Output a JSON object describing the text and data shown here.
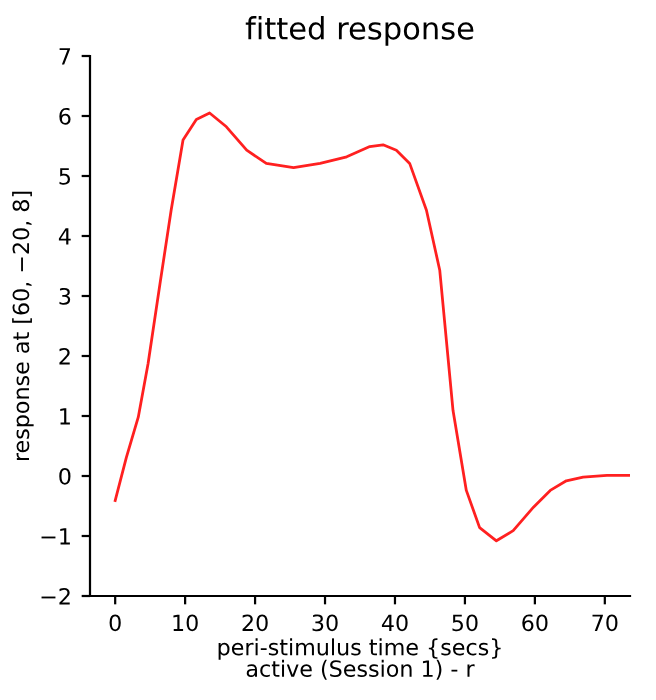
{
  "chart_data": {
    "type": "line",
    "title": "fitted response",
    "xlabel": "peri-stimulus time {secs}\nactive (Session 1) - r",
    "ylabel": "response at [60, −20, 8]",
    "x": [
      0,
      1.6,
      3.3,
      4.7,
      6.4,
      8.0,
      9.7,
      11.6,
      13.5,
      15.9,
      18.8,
      21.6,
      25.5,
      29.3,
      33.1,
      36.4,
      38.3,
      40.2,
      42.1,
      44.5,
      46.4,
      48.3,
      50.2,
      52.1,
      54.5,
      56.9,
      59.8,
      62.2,
      64.5,
      66.9,
      70.3,
      73.6
    ],
    "series": [
      {
        "color": "#ff2020",
        "values": [
          -0.41,
          0.31,
          0.98,
          1.87,
          3.2,
          4.43,
          5.6,
          5.94,
          6.05,
          5.82,
          5.43,
          5.21,
          5.14,
          5.21,
          5.32,
          5.49,
          5.52,
          5.43,
          5.21,
          4.43,
          3.43,
          1.09,
          -0.24,
          -0.86,
          -1.08,
          -0.91,
          -0.52,
          -0.24,
          -0.08,
          -0.02,
          0.01,
          0.01
        ]
      }
    ],
    "xlim": [
      -3.6,
      73.6
    ],
    "ylim": [
      -2,
      7
    ],
    "xticks": [
      0,
      10,
      20,
      30,
      40,
      50,
      60,
      70
    ],
    "yticks": [
      -2,
      -1,
      0,
      1,
      2,
      3,
      4,
      5,
      6,
      7
    ],
    "grid": false
  }
}
